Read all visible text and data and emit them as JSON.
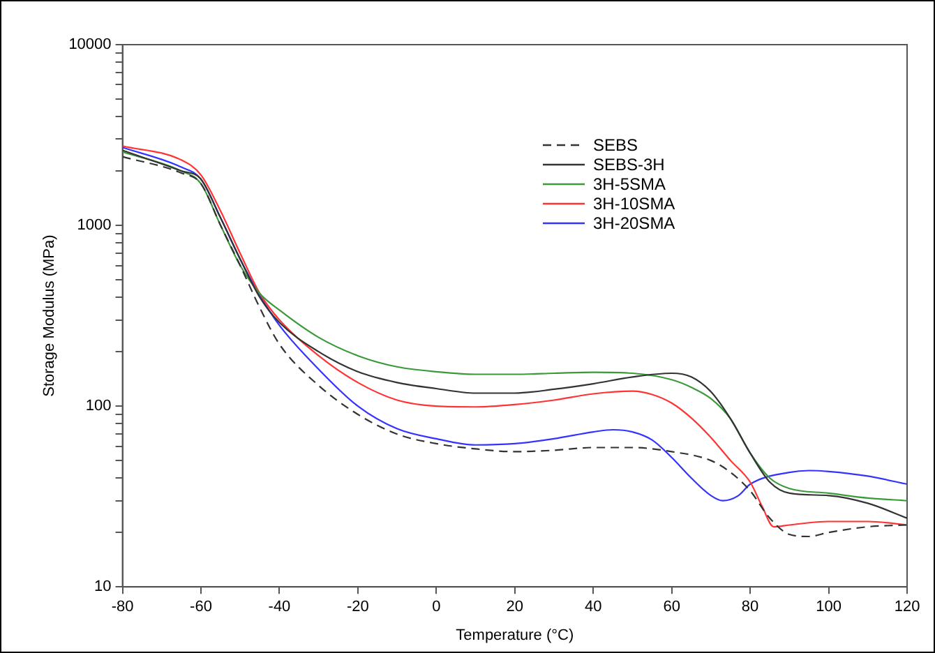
{
  "chart_data": {
    "type": "line",
    "xlabel": "Temperature (°C)",
    "ylabel": "Storage Modulus (MPa)",
    "xlim": [
      -80,
      120
    ],
    "xticks": [
      -80,
      -60,
      -40,
      -20,
      0,
      20,
      40,
      60,
      80,
      100,
      120
    ],
    "ylim": [
      10,
      10000
    ],
    "yticks": [
      10,
      {
        "value": 20,
        "label": null
      },
      {
        "value": 30,
        "label": null
      },
      {
        "value": 40,
        "label": null
      },
      {
        "value": 50,
        "label": null
      },
      {
        "value": 60,
        "label": null
      },
      {
        "value": 70,
        "label": null
      },
      {
        "value": 80,
        "label": null
      },
      {
        "value": 90,
        "label": null
      },
      100,
      {
        "value": 200,
        "label": null
      },
      {
        "value": 300,
        "label": null
      },
      {
        "value": 400,
        "label": null
      },
      {
        "value": 500,
        "label": null
      },
      {
        "value": 600,
        "label": null
      },
      {
        "value": 700,
        "label": null
      },
      {
        "value": 800,
        "label": null
      },
      {
        "value": 900,
        "label": null
      },
      1000,
      {
        "value": 2000,
        "label": null
      },
      {
        "value": 3000,
        "label": null
      },
      {
        "value": 4000,
        "label": null
      },
      {
        "value": 5000,
        "label": null
      },
      {
        "value": 6000,
        "label": null
      },
      {
        "value": 7000,
        "label": null
      },
      {
        "value": 8000,
        "label": null
      },
      {
        "value": 9000,
        "label": null
      },
      10000
    ],
    "log": "y",
    "grid": false,
    "legend": "top right",
    "marker": "none",
    "series": [
      {
        "name": "SEBS",
        "color": "#333333",
        "line_style": "dashed",
        "x": [
          -80,
          -65,
          -60,
          -55,
          -50,
          -45,
          -40,
          -30,
          -20,
          -10,
          0,
          10,
          20,
          30,
          40,
          50,
          60,
          70,
          75,
          80,
          85,
          90,
          95,
          100,
          110,
          120
        ],
        "values": [
          2400,
          1950,
          1700,
          1000,
          600,
          350,
          220,
          130,
          90,
          70,
          62,
          58,
          56,
          57,
          59,
          59,
          56,
          50,
          43,
          34,
          24,
          19.5,
          19,
          20,
          21.5,
          22
        ]
      },
      {
        "name": "SEBS-3H",
        "color": "#333333",
        "line_style": "solid",
        "x": [
          -80,
          -65,
          -60,
          -55,
          -50,
          -45,
          -40,
          -30,
          -20,
          -10,
          0,
          10,
          20,
          30,
          40,
          50,
          60,
          65,
          70,
          75,
          80,
          85,
          90,
          100,
          110,
          120
        ],
        "values": [
          2600,
          2000,
          1800,
          1100,
          650,
          400,
          290,
          200,
          155,
          135,
          125,
          118,
          118,
          124,
          133,
          145,
          152,
          145,
          120,
          85,
          55,
          38,
          33,
          32,
          29,
          24
        ]
      },
      {
        "name": "3H-5SMA",
        "color": "#3a9a3a",
        "line_style": "solid",
        "x": [
          -80,
          -65,
          -60,
          -55,
          -50,
          -45,
          -40,
          -30,
          -20,
          -10,
          0,
          10,
          20,
          30,
          40,
          50,
          60,
          65,
          70,
          75,
          80,
          85,
          90,
          100,
          110,
          120
        ],
        "values": [
          2550,
          2000,
          1700,
          1000,
          600,
          420,
          340,
          240,
          190,
          165,
          155,
          150,
          150,
          152,
          154,
          152,
          140,
          127,
          110,
          85,
          55,
          40,
          35,
          33,
          31,
          30
        ]
      },
      {
        "name": "3H-10SMA",
        "color": "#ff3333",
        "line_style": "solid",
        "x": [
          -80,
          -65,
          -60,
          -55,
          -50,
          -45,
          -40,
          -30,
          -20,
          -10,
          0,
          10,
          20,
          30,
          40,
          50,
          55,
          60,
          65,
          70,
          75,
          80,
          83,
          86,
          90,
          100,
          110,
          120
        ],
        "values": [
          2750,
          2300,
          1900,
          1200,
          700,
          420,
          300,
          190,
          135,
          108,
          100,
          99,
          102,
          108,
          117,
          121,
          116,
          104,
          86,
          67,
          50,
          38,
          28,
          21.5,
          22,
          23,
          23,
          22
        ]
      },
      {
        "name": "3H-20SMA",
        "color": "#3333ff",
        "line_style": "solid",
        "x": [
          -80,
          -65,
          -60,
          -55,
          -50,
          -45,
          -40,
          -30,
          -20,
          -10,
          0,
          10,
          20,
          30,
          40,
          45,
          50,
          55,
          60,
          65,
          70,
          73,
          77,
          80,
          90,
          95,
          100,
          110,
          120
        ],
        "values": [
          2700,
          2100,
          1800,
          1100,
          650,
          410,
          280,
          160,
          100,
          75,
          66,
          61,
          62,
          66,
          72,
          74,
          72,
          65,
          52,
          40,
          32,
          30,
          32,
          37,
          43,
          44,
          43.5,
          41,
          37
        ]
      }
    ]
  }
}
